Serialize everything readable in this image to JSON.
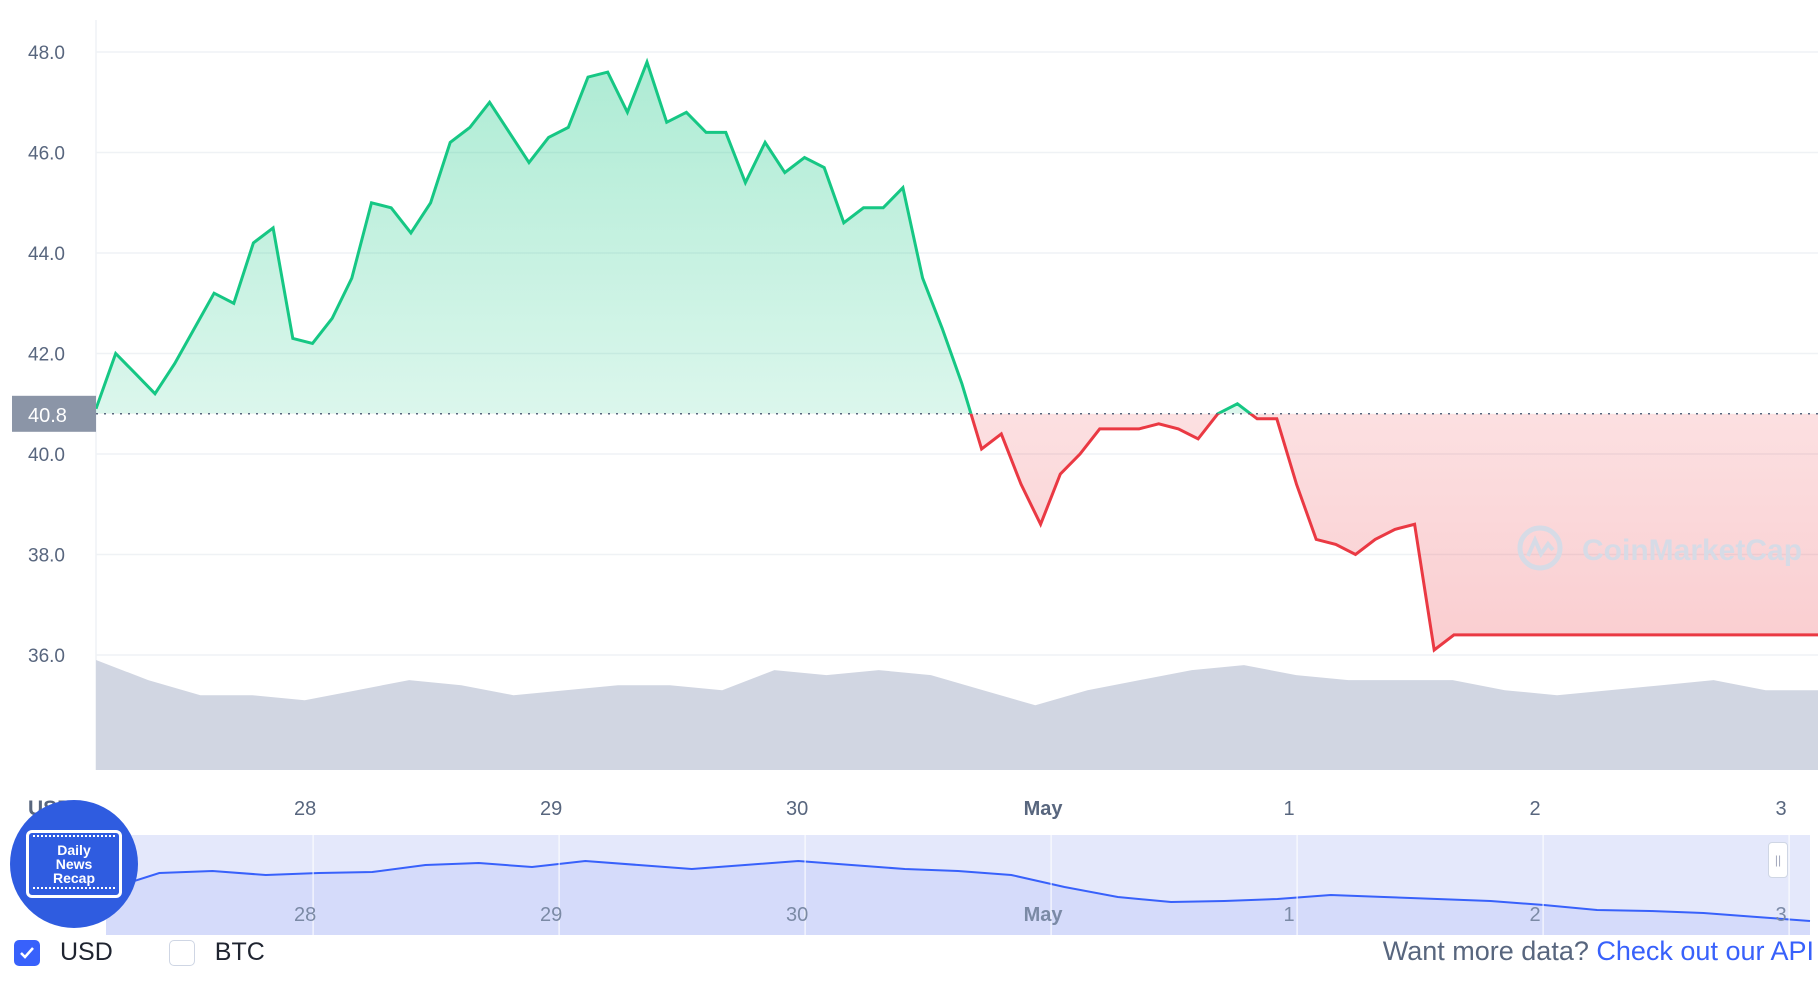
{
  "chart_data": {
    "type": "line",
    "currency_label": "USD",
    "current_price_label": "40.8",
    "reference_price": 40.8,
    "ylim": [
      34,
      48.8
    ],
    "y_ticks": [
      "48.0",
      "46.0",
      "44.0",
      "42.0",
      "40.0",
      "38.0",
      "36.0"
    ],
    "x_ticks": [
      "28",
      "29",
      "30",
      "May",
      "1",
      "2",
      "3"
    ],
    "x_tick_bold": [
      false,
      false,
      false,
      true,
      false,
      false,
      false
    ],
    "x_range_days": [
      0,
      7.0
    ],
    "x_tick_days": [
      0.85,
      1.85,
      2.85,
      3.85,
      4.85,
      5.85,
      6.85
    ],
    "up_color": "#16c784",
    "down_color": "#ea3943",
    "series": [
      {
        "x": [
          0.0,
          0.08,
          0.16,
          0.24,
          0.32,
          0.4,
          0.48,
          0.56,
          0.64,
          0.72,
          0.8,
          0.88,
          0.96,
          1.04,
          1.12,
          1.2,
          1.28,
          1.36,
          1.44,
          1.52,
          1.6,
          1.68,
          1.76,
          1.84,
          1.92,
          2.0,
          2.08,
          2.16,
          2.24,
          2.32,
          2.4,
          2.48,
          2.56,
          2.64,
          2.72,
          2.8,
          2.88,
          2.96,
          3.04,
          3.12,
          3.2,
          3.28,
          3.36,
          3.44,
          3.52,
          3.6,
          3.68,
          3.76,
          3.84,
          3.92,
          4.0,
          4.08,
          4.12,
          4.16,
          4.24,
          4.32,
          4.4,
          4.48,
          4.56,
          4.64,
          4.72,
          4.8,
          4.88,
          4.96,
          5.04,
          5.12,
          5.2,
          5.28,
          5.36,
          5.44,
          5.52,
          5.6,
          5.68,
          5.76,
          5.84,
          5.92,
          6.0,
          6.08,
          6.16,
          6.24,
          6.32,
          6.4,
          6.48,
          6.56,
          6.64,
          6.72,
          6.8,
          6.88,
          6.96,
          7.0
        ],
        "values": [
          40.9,
          42.0,
          41.6,
          41.2,
          41.8,
          42.5,
          43.2,
          43.0,
          44.2,
          44.5,
          42.3,
          42.2,
          42.7,
          43.5,
          45.0,
          44.9,
          44.4,
          45.0,
          46.2,
          46.5,
          47.0,
          46.4,
          45.8,
          46.3,
          46.5,
          47.5,
          47.6,
          46.8,
          47.8,
          46.6,
          46.8,
          46.4,
          46.4,
          45.4,
          46.2,
          45.6,
          45.9,
          45.7,
          44.6,
          44.9,
          44.9,
          45.3,
          43.5,
          42.5,
          41.4,
          40.1,
          40.4,
          39.4,
          38.6,
          39.6,
          40.0,
          40.5,
          40.5,
          40.5,
          40.5,
          40.6,
          40.5,
          40.3,
          40.8,
          41.0,
          40.7,
          40.7,
          39.4,
          38.3,
          38.2,
          38.0,
          38.3,
          38.5,
          38.6,
          36.1,
          36.4,
          36.4,
          36.4,
          36.4,
          36.4,
          36.4,
          36.4,
          36.4,
          36.4,
          36.4,
          36.4,
          36.4,
          36.4,
          36.4,
          36.4,
          36.4,
          36.4,
          36.4,
          36.4,
          36.4
        ]
      }
    ],
    "volume": [
      35.9,
      35.5,
      35.2,
      35.2,
      35.1,
      35.3,
      35.5,
      35.4,
      35.2,
      35.3,
      35.4,
      35.4,
      35.3,
      35.7,
      35.6,
      35.7,
      35.6,
      35.3,
      35.0,
      35.3,
      35.5,
      35.7,
      35.8,
      35.6,
      35.5,
      35.5,
      35.5,
      35.3,
      35.2,
      35.3,
      35.4,
      35.5,
      35.3,
      35.3
    ],
    "navigator": {
      "x_ticks": [
        "28",
        "29",
        "30",
        "May",
        "1",
        "2",
        "3"
      ],
      "values": [
        0.45,
        0.62,
        0.64,
        0.6,
        0.62,
        0.63,
        0.7,
        0.72,
        0.68,
        0.74,
        0.7,
        0.66,
        0.7,
        0.74,
        0.7,
        0.66,
        0.64,
        0.6,
        0.48,
        0.38,
        0.33,
        0.34,
        0.36,
        0.4,
        0.38,
        0.36,
        0.34,
        0.3,
        0.25,
        0.24,
        0.22,
        0.18,
        0.14
      ]
    }
  },
  "watermark": "CoinMarketCap",
  "badge": {
    "line1": "Daily",
    "line2": "News",
    "line3": "Recap"
  },
  "legend": {
    "usd_label": "USD",
    "btc_label": "BTC"
  },
  "api": {
    "prompt": "Want more data?",
    "link_label": "Check out our API"
  }
}
